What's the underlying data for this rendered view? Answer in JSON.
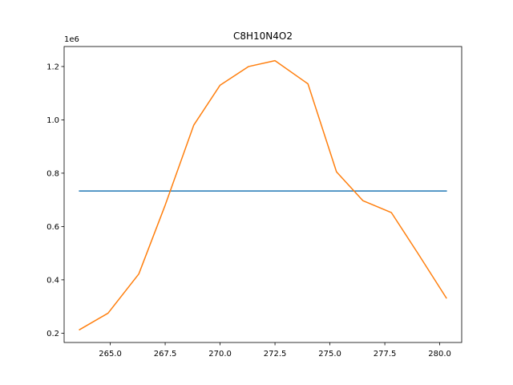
{
  "chart_data": {
    "type": "line",
    "title": "C8H10N4O2",
    "xlabel": "",
    "ylabel": "",
    "y_offset_label": "1e6",
    "xlim": [
      262.9,
      281.0
    ],
    "ylim": [
      0.165,
      1.275
    ],
    "y_scale_factor": 1000000,
    "grid": false,
    "x_ticks": [
      265.0,
      267.5,
      270.0,
      272.5,
      275.0,
      277.5,
      280.0
    ],
    "x_tick_labels": [
      "265.0",
      "267.5",
      "270.0",
      "272.5",
      "275.0",
      "277.5",
      "280.0"
    ],
    "y_ticks": [
      0.2,
      0.4,
      0.6,
      0.8,
      1.0,
      1.2
    ],
    "y_tick_labels": [
      "0.2",
      "0.4",
      "0.6",
      "0.8",
      "1.0",
      "1.2"
    ],
    "series": [
      {
        "color": "#1f77b4",
        "x": [
          263.6,
          280.3
        ],
        "y": [
          0.733,
          0.733
        ]
      },
      {
        "color": "#ff7f0e",
        "x": [
          263.6,
          264.9,
          266.3,
          267.5,
          268.8,
          270.0,
          271.3,
          272.5,
          274.0,
          275.3,
          276.5,
          277.8,
          279.0,
          280.3
        ],
        "y": [
          0.213,
          0.275,
          0.422,
          0.68,
          0.98,
          1.13,
          1.2,
          1.222,
          1.135,
          0.805,
          0.697,
          0.652,
          0.5,
          0.332
        ]
      }
    ]
  }
}
